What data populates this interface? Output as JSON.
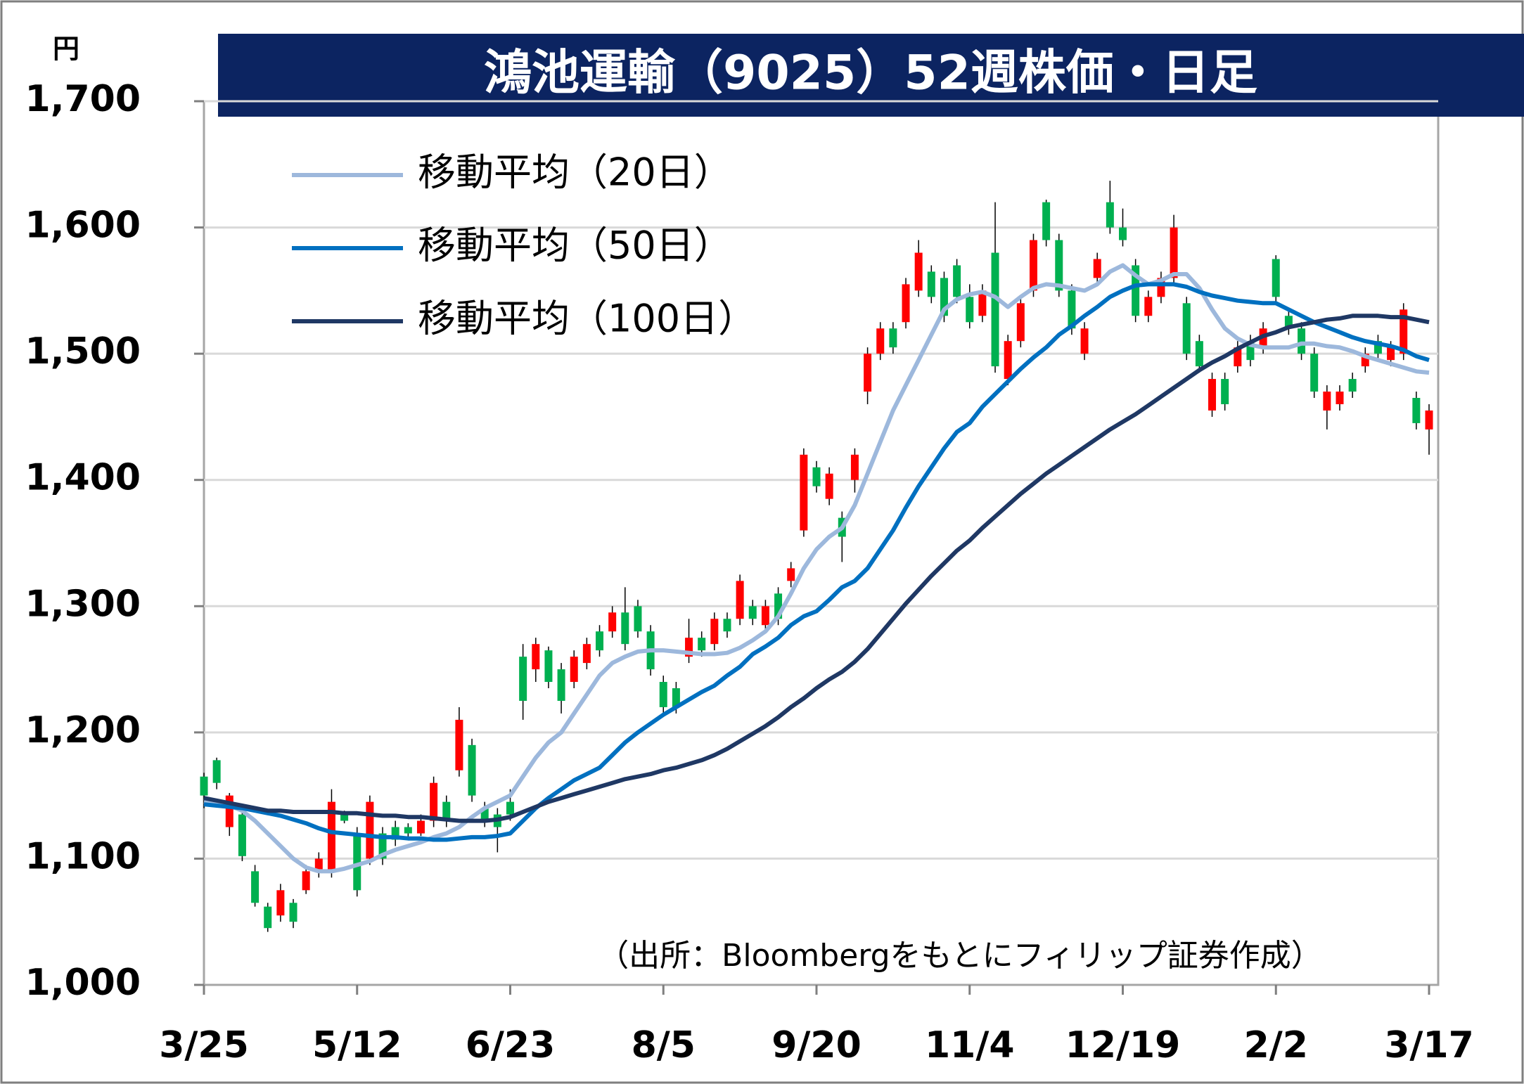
{
  "chart_data": {
    "type": "candlestick",
    "title": "鴻池運輸（9025）52週株価・日足",
    "unit_label": "円",
    "source": "（出所：Bloombergをもとにフィリップ証券作成）",
    "categories": [
      "3/25",
      null,
      null,
      null,
      null,
      null,
      null,
      null,
      null,
      null,
      null,
      null,
      "5/12",
      null,
      null,
      null,
      null,
      null,
      null,
      null,
      null,
      null,
      null,
      null,
      "6/23",
      null,
      null,
      null,
      null,
      null,
      null,
      null,
      null,
      null,
      null,
      null,
      "8/5",
      null,
      null,
      null,
      null,
      null,
      null,
      null,
      null,
      null,
      null,
      null,
      "9/20",
      null,
      null,
      null,
      null,
      null,
      null,
      null,
      null,
      null,
      null,
      null,
      "11/4",
      null,
      null,
      null,
      null,
      null,
      null,
      null,
      null,
      null,
      null,
      null,
      "12/19",
      null,
      null,
      null,
      null,
      null,
      null,
      null,
      null,
      null,
      null,
      null,
      "2/2",
      null,
      null,
      null,
      null,
      null,
      null,
      null,
      null,
      null,
      null,
      null,
      "3/17"
    ],
    "open": [
      1165,
      1178,
      1125,
      1135,
      1090,
      1062,
      1055,
      1065,
      1075,
      1090,
      1090,
      1135,
      1120,
      1100,
      1120,
      1125,
      1125,
      1120,
      1130,
      1145,
      1170,
      1190,
      1140,
      1135,
      1145,
      1260,
      1250,
      1265,
      1250,
      1240,
      1255,
      1280,
      1280,
      1295,
      1300,
      1280,
      1240,
      1235,
      1260,
      1275,
      1270,
      1290,
      1290,
      1300,
      1285,
      1310,
      1320,
      1360,
      1410,
      1385,
      1370,
      1400,
      1470,
      1500,
      1520,
      1525,
      1550,
      1565,
      1560,
      1570,
      1545,
      1530,
      1580,
      1480,
      1510,
      1550,
      1620,
      1590,
      1550,
      1500,
      1560,
      1620,
      1600,
      1570,
      1530,
      1545,
      1560,
      1540,
      1510,
      1455,
      1480,
      1490,
      1510,
      1505,
      1575,
      1530,
      1520,
      1500,
      1455,
      1460,
      1480,
      1490,
      1510,
      1495,
      1500,
      1465,
      1440
    ],
    "high": [
      1168,
      1180,
      1152,
      1138,
      1095,
      1065,
      1080,
      1068,
      1095,
      1105,
      1155,
      1138,
      1125,
      1150,
      1125,
      1130,
      1128,
      1135,
      1165,
      1150,
      1220,
      1195,
      1145,
      1140,
      1155,
      1270,
      1275,
      1268,
      1255,
      1265,
      1275,
      1285,
      1300,
      1315,
      1305,
      1285,
      1245,
      1240,
      1290,
      1280,
      1295,
      1295,
      1325,
      1305,
      1305,
      1315,
      1335,
      1425,
      1415,
      1410,
      1375,
      1425,
      1505,
      1525,
      1525,
      1560,
      1590,
      1570,
      1565,
      1575,
      1555,
      1555,
      1620,
      1515,
      1545,
      1595,
      1622,
      1595,
      1555,
      1525,
      1580,
      1637,
      1615,
      1575,
      1550,
      1565,
      1610,
      1545,
      1515,
      1485,
      1485,
      1510,
      1515,
      1525,
      1578,
      1535,
      1525,
      1505,
      1475,
      1475,
      1485,
      1505,
      1515,
      1510,
      1540,
      1470,
      1460
    ],
    "low": [
      1140,
      1155,
      1118,
      1098,
      1062,
      1042,
      1050,
      1045,
      1072,
      1085,
      1085,
      1128,
      1070,
      1095,
      1095,
      1110,
      1115,
      1118,
      1125,
      1125,
      1165,
      1145,
      1125,
      1105,
      1130,
      1210,
      1240,
      1235,
      1215,
      1235,
      1250,
      1260,
      1275,
      1265,
      1275,
      1245,
      1215,
      1215,
      1255,
      1260,
      1265,
      1275,
      1285,
      1285,
      1280,
      1285,
      1315,
      1355,
      1390,
      1380,
      1335,
      1390,
      1460,
      1495,
      1500,
      1520,
      1545,
      1540,
      1525,
      1540,
      1520,
      1525,
      1485,
      1475,
      1505,
      1545,
      1585,
      1545,
      1515,
      1495,
      1555,
      1595,
      1585,
      1525,
      1525,
      1540,
      1555,
      1495,
      1485,
      1450,
      1455,
      1485,
      1490,
      1500,
      1540,
      1515,
      1495,
      1465,
      1440,
      1455,
      1465,
      1485,
      1495,
      1490,
      1495,
      1440,
      1420
    ],
    "close": [
      1150,
      1160,
      1150,
      1102,
      1065,
      1045,
      1075,
      1050,
      1090,
      1100,
      1145,
      1130,
      1075,
      1145,
      1100,
      1115,
      1120,
      1130,
      1160,
      1130,
      1210,
      1150,
      1130,
      1125,
      1135,
      1225,
      1270,
      1240,
      1225,
      1260,
      1270,
      1265,
      1295,
      1270,
      1280,
      1250,
      1220,
      1220,
      1275,
      1265,
      1290,
      1280,
      1320,
      1290,
      1300,
      1290,
      1330,
      1420,
      1395,
      1405,
      1355,
      1420,
      1500,
      1520,
      1505,
      1555,
      1580,
      1545,
      1530,
      1545,
      1525,
      1550,
      1490,
      1510,
      1540,
      1590,
      1590,
      1550,
      1520,
      1520,
      1575,
      1600,
      1590,
      1530,
      1545,
      1560,
      1600,
      1500,
      1490,
      1480,
      1460,
      1505,
      1495,
      1520,
      1545,
      1520,
      1500,
      1470,
      1470,
      1470,
      1470,
      1500,
      1500,
      1505,
      1535,
      1445,
      1455
    ],
    "up_color": "#ff0000",
    "down_color": "#00b050",
    "series": [
      {
        "name": "移動平均（20日）",
        "color": "#9db8dc",
        "values": [
          1145,
          1144,
          1142,
          1138,
          1130,
          1120,
          1110,
          1100,
          1093,
          1090,
          1090,
          1092,
          1095,
          1098,
          1103,
          1107,
          1110,
          1113,
          1117,
          1120,
          1125,
          1133,
          1140,
          1145,
          1150,
          1165,
          1180,
          1192,
          1200,
          1215,
          1230,
          1245,
          1255,
          1260,
          1264,
          1265,
          1265,
          1264,
          1263,
          1262,
          1262,
          1263,
          1267,
          1273,
          1280,
          1292,
          1310,
          1330,
          1345,
          1355,
          1362,
          1380,
          1405,
          1430,
          1455,
          1475,
          1495,
          1515,
          1535,
          1543,
          1547,
          1549,
          1545,
          1537,
          1545,
          1552,
          1555,
          1554,
          1552,
          1550,
          1555,
          1565,
          1570,
          1562,
          1555,
          1558,
          1563,
          1563,
          1552,
          1535,
          1520,
          1512,
          1507,
          1505,
          1505,
          1505,
          1508,
          1508,
          1506,
          1505,
          1502,
          1498,
          1495,
          1492,
          1489,
          1486,
          1485
        ]
      },
      {
        "name": "移動平均（50日）",
        "color": "#0070c0",
        "values": [
          1143,
          1142,
          1141,
          1140,
          1138,
          1136,
          1134,
          1131,
          1128,
          1124,
          1121,
          1120,
          1119,
          1118,
          1117,
          1117,
          1116,
          1116,
          1115,
          1115,
          1116,
          1117,
          1117,
          1118,
          1120,
          1130,
          1140,
          1148,
          1155,
          1162,
          1167,
          1172,
          1182,
          1192,
          1200,
          1207,
          1214,
          1220,
          1226,
          1232,
          1237,
          1245,
          1252,
          1262,
          1268,
          1275,
          1285,
          1292,
          1296,
          1305,
          1315,
          1320,
          1330,
          1345,
          1360,
          1378,
          1395,
          1410,
          1425,
          1438,
          1445,
          1458,
          1468,
          1478,
          1488,
          1497,
          1505,
          1515,
          1522,
          1530,
          1537,
          1545,
          1550,
          1554,
          1555,
          1555,
          1555,
          1553,
          1549,
          1546,
          1544,
          1542,
          1541,
          1540,
          1540,
          1535,
          1530,
          1525,
          1521,
          1517,
          1513,
          1510,
          1508,
          1506,
          1503,
          1498,
          1495
        ]
      },
      {
        "name": "移動平均（100日）",
        "color": "#1f3864",
        "values": [
          1148,
          1146,
          1144,
          1142,
          1140,
          1138,
          1138,
          1137,
          1137,
          1137,
          1137,
          1136,
          1136,
          1135,
          1134,
          1134,
          1133,
          1133,
          1132,
          1131,
          1130,
          1130,
          1130,
          1131,
          1133,
          1137,
          1141,
          1145,
          1148,
          1151,
          1154,
          1157,
          1160,
          1163,
          1165,
          1167,
          1170,
          1172,
          1175,
          1178,
          1182,
          1187,
          1193,
          1199,
          1205,
          1212,
          1220,
          1227,
          1235,
          1242,
          1248,
          1256,
          1266,
          1278,
          1290,
          1302,
          1313,
          1324,
          1334,
          1344,
          1352,
          1362,
          1371,
          1380,
          1389,
          1397,
          1405,
          1412,
          1419,
          1426,
          1433,
          1440,
          1446,
          1452,
          1459,
          1466,
          1473,
          1480,
          1487,
          1493,
          1498,
          1504,
          1509,
          1514,
          1517,
          1521,
          1523,
          1525,
          1527,
          1528,
          1530,
          1530,
          1530,
          1529,
          1529,
          1527,
          1525
        ]
      }
    ],
    "ylim": [
      1000,
      1700
    ],
    "yticks": [
      {
        "value": 1000,
        "label": "1,000"
      },
      {
        "value": 1100,
        "label": "1,100"
      },
      {
        "value": 1200,
        "label": "1,200"
      },
      {
        "value": 1300,
        "label": "1,300"
      },
      {
        "value": 1400,
        "label": "1,400"
      },
      {
        "value": 1500,
        "label": "1,500"
      },
      {
        "value": 1600,
        "label": "1,600"
      },
      {
        "value": 1700,
        "label": "1,700"
      }
    ],
    "grid": true,
    "legend": "upper left"
  }
}
